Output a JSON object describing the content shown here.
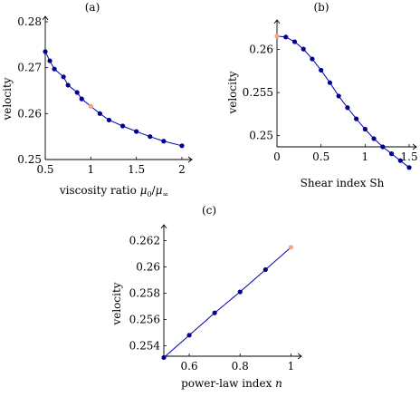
{
  "colors": {
    "line": "#0000aa",
    "marker": "#00008b",
    "highlight": "#f4a582",
    "axis": "#000000"
  },
  "chart_data": [
    {
      "type": "line",
      "title": "(a)",
      "xlabel_text": "viscosity ratio ",
      "xlabel_math": "μ",
      "xlabel_sub1": "0",
      "xlabel_slash": "/",
      "xlabel_math2": "μ",
      "xlabel_sub2": "∞",
      "ylabel": "velocity",
      "xlim": [
        0.5,
        2.05
      ],
      "ylim": [
        0.25,
        0.28
      ],
      "xticks": [
        0.5,
        1,
        1.5,
        2
      ],
      "xtick_labels": [
        "0.5",
        "1",
        "1.5",
        "2"
      ],
      "yticks": [
        0.25,
        0.26,
        0.27,
        0.28
      ],
      "ytick_labels": [
        "0.25",
        "0.26",
        "0.27",
        "0.28"
      ],
      "series": [
        {
          "x": [
            0.5,
            0.55,
            0.6,
            0.7,
            0.75,
            0.85,
            0.9,
            1.0,
            1.1,
            1.2,
            1.35,
            1.5,
            1.65,
            1.8,
            2.0
          ],
          "y": [
            0.2735,
            0.2715,
            0.2697,
            0.268,
            0.2662,
            0.2646,
            0.2632,
            0.2616,
            0.26,
            0.2586,
            0.2573,
            0.2561,
            0.255,
            0.254,
            0.253
          ]
        }
      ],
      "highlight": {
        "x": 1.0,
        "y": 0.2616
      }
    },
    {
      "type": "line",
      "title": "(b)",
      "xlabel": "Shear index Sh",
      "ylabel": "velocity",
      "xlim": [
        0,
        1.52
      ],
      "ylim": [
        0.2487,
        0.2628
      ],
      "xticks": [
        0,
        0.5,
        1,
        1.5
      ],
      "xtick_labels": [
        "0",
        "0.5",
        "1",
        "1.5"
      ],
      "yticks": [
        0.25,
        0.255,
        0.26
      ],
      "ytick_labels": [
        "0.25",
        "0.255",
        "0.26"
      ],
      "series": [
        {
          "x": [
            0,
            0.1,
            0.2,
            0.3,
            0.4,
            0.5,
            0.6,
            0.7,
            0.8,
            0.9,
            1.0,
            1.1,
            1.2,
            1.3,
            1.4,
            1.5
          ],
          "y": [
            0.26155,
            0.26145,
            0.2609,
            0.26005,
            0.2589,
            0.2576,
            0.25615,
            0.2546,
            0.25325,
            0.25195,
            0.25075,
            0.24965,
            0.2487,
            0.2479,
            0.2471,
            0.2463
          ]
        }
      ],
      "highlight": {
        "x": 0,
        "y": 0.26155
      }
    },
    {
      "type": "line",
      "title": "(c)",
      "xlabel_text": "power-law index ",
      "xlabel_math": "n",
      "ylabel": "velocity",
      "xlim": [
        0.5,
        1.02
      ],
      "ylim": [
        0.2532,
        0.2628
      ],
      "xticks": [
        0.6,
        0.8,
        1
      ],
      "xtick_labels": [
        "0.6",
        "0.8",
        "1"
      ],
      "yticks": [
        0.254,
        0.256,
        0.258,
        0.26,
        0.262
      ],
      "ytick_labels": [
        "0.254",
        "0.256",
        "0.258",
        "0.26",
        "0.262"
      ],
      "series": [
        {
          "x": [
            0.5,
            0.6,
            0.7,
            0.8,
            0.9,
            1.0
          ],
          "y": [
            0.2531,
            0.2548,
            0.2565,
            0.2581,
            0.2598,
            0.2615
          ]
        }
      ],
      "highlight": {
        "x": 1.0,
        "y": 0.2615
      }
    }
  ]
}
